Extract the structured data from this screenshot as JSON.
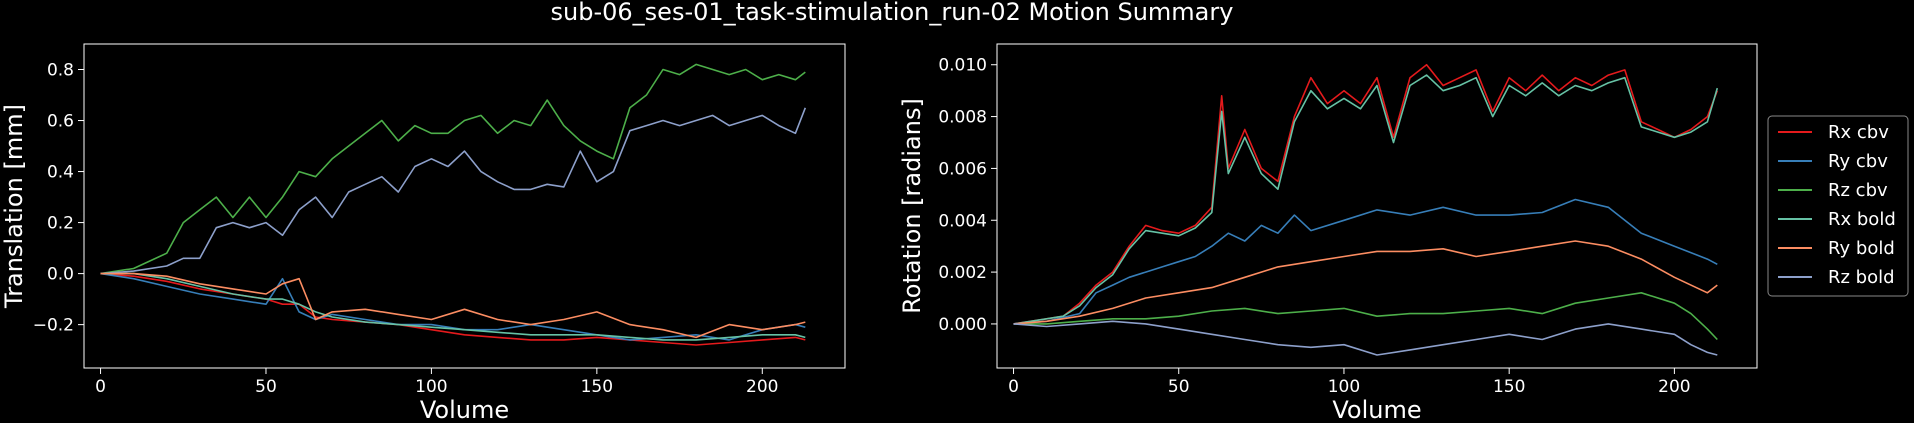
{
  "title": "sub-06_ses-01_task-stimulation_run-02 Motion Summary",
  "colors": {
    "Rx cbv": "#e41a1c",
    "Ry cbv": "#377eb8",
    "Rz cbv": "#4daf4a",
    "Rx bold": "#66c2a5",
    "Ry bold": "#fc8d62",
    "Rz bold": "#8da0cb"
  },
  "chart_data": [
    {
      "type": "line",
      "xlabel": "Volume",
      "ylabel": "Translation [mm]",
      "xlim": [
        -5,
        225
      ],
      "ylim": [
        -0.37,
        0.9
      ],
      "xticks": [
        0,
        50,
        100,
        150,
        200
      ],
      "yticks": [
        -0.2,
        0.0,
        0.2,
        0.4,
        0.6,
        0.8
      ],
      "ytick_labels": [
        "−0.2",
        "0.0",
        "0.2",
        "0.4",
        "0.6",
        "0.8"
      ],
      "grid": false,
      "legend": "none",
      "series": [
        {
          "color_key": "Rz cbv",
          "x": [
            0,
            10,
            20,
            25,
            30,
            35,
            40,
            45,
            50,
            55,
            60,
            65,
            70,
            75,
            80,
            85,
            90,
            95,
            100,
            105,
            110,
            115,
            120,
            125,
            130,
            135,
            140,
            145,
            150,
            155,
            160,
            165,
            170,
            175,
            180,
            185,
            190,
            195,
            200,
            205,
            210,
            213
          ],
          "y": [
            0.0,
            0.02,
            0.08,
            0.2,
            0.25,
            0.3,
            0.22,
            0.3,
            0.22,
            0.3,
            0.4,
            0.38,
            0.45,
            0.5,
            0.55,
            0.6,
            0.52,
            0.58,
            0.55,
            0.55,
            0.6,
            0.62,
            0.55,
            0.6,
            0.58,
            0.68,
            0.58,
            0.52,
            0.48,
            0.45,
            0.65,
            0.7,
            0.8,
            0.78,
            0.82,
            0.8,
            0.78,
            0.8,
            0.76,
            0.78,
            0.76,
            0.79
          ]
        },
        {
          "color_key": "Rz bold",
          "x": [
            0,
            10,
            20,
            25,
            30,
            35,
            40,
            45,
            50,
            55,
            60,
            65,
            70,
            75,
            80,
            85,
            90,
            95,
            100,
            105,
            110,
            115,
            120,
            125,
            130,
            135,
            140,
            145,
            150,
            155,
            160,
            165,
            170,
            175,
            180,
            185,
            190,
            195,
            200,
            205,
            210,
            213
          ],
          "y": [
            0.0,
            0.01,
            0.03,
            0.06,
            0.06,
            0.18,
            0.2,
            0.18,
            0.2,
            0.15,
            0.25,
            0.3,
            0.22,
            0.32,
            0.35,
            0.38,
            0.32,
            0.42,
            0.45,
            0.42,
            0.48,
            0.4,
            0.36,
            0.33,
            0.33,
            0.35,
            0.34,
            0.48,
            0.36,
            0.4,
            0.56,
            0.58,
            0.6,
            0.58,
            0.6,
            0.62,
            0.58,
            0.6,
            0.62,
            0.58,
            0.55,
            0.65
          ]
        },
        {
          "color_key": "Rx cbv",
          "x": [
            0,
            10,
            20,
            30,
            40,
            50,
            55,
            60,
            65,
            70,
            80,
            90,
            100,
            110,
            120,
            130,
            140,
            150,
            160,
            170,
            180,
            190,
            200,
            210,
            213
          ],
          "y": [
            0.0,
            -0.01,
            -0.03,
            -0.06,
            -0.08,
            -0.1,
            -0.12,
            -0.12,
            -0.17,
            -0.18,
            -0.19,
            -0.2,
            -0.22,
            -0.24,
            -0.25,
            -0.26,
            -0.26,
            -0.25,
            -0.26,
            -0.27,
            -0.28,
            -0.27,
            -0.26,
            -0.25,
            -0.26
          ]
        },
        {
          "color_key": "Ry cbv",
          "x": [
            0,
            10,
            20,
            30,
            40,
            50,
            55,
            60,
            65,
            70,
            80,
            90,
            100,
            110,
            120,
            130,
            140,
            150,
            160,
            170,
            180,
            190,
            200,
            210,
            213
          ],
          "y": [
            0.0,
            -0.02,
            -0.05,
            -0.08,
            -0.1,
            -0.12,
            -0.02,
            -0.15,
            -0.18,
            -0.16,
            -0.18,
            -0.2,
            -0.2,
            -0.22,
            -0.22,
            -0.2,
            -0.22,
            -0.24,
            -0.26,
            -0.25,
            -0.24,
            -0.26,
            -0.22,
            -0.2,
            -0.21
          ]
        },
        {
          "color_key": "Rx bold",
          "x": [
            0,
            10,
            20,
            30,
            40,
            50,
            55,
            60,
            65,
            70,
            80,
            90,
            100,
            110,
            120,
            130,
            140,
            150,
            160,
            170,
            180,
            190,
            200,
            210,
            213
          ],
          "y": [
            0.0,
            0.0,
            -0.02,
            -0.05,
            -0.08,
            -0.1,
            -0.1,
            -0.12,
            -0.15,
            -0.17,
            -0.19,
            -0.2,
            -0.21,
            -0.22,
            -0.23,
            -0.24,
            -0.24,
            -0.24,
            -0.25,
            -0.26,
            -0.26,
            -0.25,
            -0.24,
            -0.24,
            -0.25
          ]
        },
        {
          "color_key": "Ry bold",
          "x": [
            0,
            10,
            20,
            30,
            40,
            50,
            55,
            60,
            65,
            70,
            80,
            90,
            100,
            110,
            120,
            130,
            140,
            150,
            160,
            170,
            180,
            190,
            200,
            210,
            213
          ],
          "y": [
            0.0,
            0.0,
            -0.01,
            -0.04,
            -0.06,
            -0.08,
            -0.04,
            -0.02,
            -0.18,
            -0.15,
            -0.14,
            -0.16,
            -0.18,
            -0.14,
            -0.18,
            -0.2,
            -0.18,
            -0.15,
            -0.2,
            -0.22,
            -0.25,
            -0.2,
            -0.22,
            -0.2,
            -0.19
          ]
        }
      ]
    },
    {
      "type": "line",
      "xlabel": "Volume",
      "ylabel": "Rotation [radians]",
      "xlim": [
        -5,
        225
      ],
      "ylim": [
        -0.0017,
        0.0108
      ],
      "xticks": [
        0,
        50,
        100,
        150,
        200
      ],
      "yticks": [
        0.0,
        0.002,
        0.004,
        0.006,
        0.008,
        0.01
      ],
      "ytick_labels": [
        "0.000",
        "0.002",
        "0.004",
        "0.006",
        "0.008",
        "0.010"
      ],
      "grid": false,
      "legend": "right, outside",
      "legend_entries": [
        "Rx cbv",
        "Ry cbv",
        "Rz cbv",
        "Rx bold",
        "Ry bold",
        "Rz bold"
      ],
      "series": [
        {
          "name": "Rx cbv",
          "x": [
            0,
            10,
            15,
            20,
            25,
            30,
            35,
            40,
            45,
            50,
            55,
            60,
            63,
            65,
            70,
            75,
            80,
            85,
            90,
            95,
            100,
            105,
            110,
            115,
            120,
            125,
            130,
            135,
            140,
            145,
            150,
            155,
            160,
            165,
            170,
            175,
            180,
            185,
            190,
            195,
            200,
            205,
            210,
            213
          ],
          "y": [
            0.0,
            0.0002,
            0.0003,
            0.0008,
            0.0015,
            0.002,
            0.003,
            0.0038,
            0.0036,
            0.0035,
            0.0038,
            0.0045,
            0.0088,
            0.006,
            0.0075,
            0.006,
            0.0055,
            0.008,
            0.0095,
            0.0085,
            0.009,
            0.0085,
            0.0095,
            0.0072,
            0.0095,
            0.01,
            0.0092,
            0.0095,
            0.0098,
            0.0082,
            0.0095,
            0.009,
            0.0096,
            0.009,
            0.0095,
            0.0092,
            0.0096,
            0.0098,
            0.0078,
            0.0075,
            0.0072,
            0.0075,
            0.008,
            0.009
          ]
        },
        {
          "name": "Ry cbv",
          "x": [
            0,
            10,
            20,
            25,
            30,
            35,
            40,
            45,
            50,
            55,
            60,
            65,
            70,
            75,
            80,
            85,
            90,
            100,
            110,
            120,
            130,
            140,
            150,
            160,
            170,
            180,
            190,
            200,
            210,
            213
          ],
          "y": [
            0.0,
            0.0001,
            0.0004,
            0.0012,
            0.0015,
            0.0018,
            0.002,
            0.0022,
            0.0024,
            0.0026,
            0.003,
            0.0035,
            0.0032,
            0.0038,
            0.0035,
            0.0042,
            0.0036,
            0.004,
            0.0044,
            0.0042,
            0.0045,
            0.0042,
            0.0042,
            0.0043,
            0.0048,
            0.0045,
            0.0035,
            0.003,
            0.0025,
            0.0023
          ]
        },
        {
          "name": "Rz cbv",
          "x": [
            0,
            10,
            20,
            30,
            40,
            50,
            60,
            70,
            80,
            90,
            100,
            110,
            120,
            130,
            140,
            150,
            160,
            170,
            180,
            190,
            200,
            205,
            210,
            213
          ],
          "y": [
            0.0,
            0.0,
            0.0001,
            0.0002,
            0.0002,
            0.0003,
            0.0005,
            0.0006,
            0.0004,
            0.0005,
            0.0006,
            0.0003,
            0.0004,
            0.0004,
            0.0005,
            0.0006,
            0.0004,
            0.0008,
            0.001,
            0.0012,
            0.0008,
            0.0004,
            -0.0002,
            -0.0006
          ]
        },
        {
          "name": "Rx bold",
          "x": [
            0,
            10,
            15,
            20,
            25,
            30,
            35,
            40,
            45,
            50,
            55,
            60,
            63,
            65,
            70,
            75,
            80,
            85,
            90,
            95,
            100,
            105,
            110,
            115,
            120,
            125,
            130,
            135,
            140,
            145,
            150,
            155,
            160,
            165,
            170,
            175,
            180,
            185,
            190,
            195,
            200,
            205,
            210,
            213
          ],
          "y": [
            0.0,
            0.0002,
            0.0003,
            0.0007,
            0.0014,
            0.0019,
            0.0029,
            0.0036,
            0.0035,
            0.0034,
            0.0037,
            0.0043,
            0.0082,
            0.0058,
            0.0072,
            0.0058,
            0.0052,
            0.0078,
            0.009,
            0.0083,
            0.0087,
            0.0083,
            0.0092,
            0.007,
            0.0092,
            0.0096,
            0.009,
            0.0092,
            0.0095,
            0.008,
            0.0092,
            0.0088,
            0.0093,
            0.0088,
            0.0092,
            0.009,
            0.0093,
            0.0095,
            0.0076,
            0.0074,
            0.0072,
            0.0074,
            0.0078,
            0.0091
          ]
        },
        {
          "name": "Ry bold",
          "x": [
            0,
            10,
            20,
            30,
            40,
            50,
            60,
            70,
            80,
            90,
            100,
            110,
            120,
            130,
            140,
            150,
            160,
            170,
            180,
            190,
            200,
            210,
            213
          ],
          "y": [
            0.0,
            0.0001,
            0.0003,
            0.0006,
            0.001,
            0.0012,
            0.0014,
            0.0018,
            0.0022,
            0.0024,
            0.0026,
            0.0028,
            0.0028,
            0.0029,
            0.0026,
            0.0028,
            0.003,
            0.0032,
            0.003,
            0.0025,
            0.0018,
            0.0012,
            0.0015
          ]
        },
        {
          "name": "Rz bold",
          "x": [
            0,
            10,
            20,
            30,
            40,
            50,
            60,
            70,
            80,
            90,
            100,
            110,
            120,
            130,
            140,
            150,
            160,
            170,
            180,
            190,
            200,
            205,
            210,
            213
          ],
          "y": [
            0.0,
            -0.0001,
            0.0,
            0.0001,
            0.0,
            -0.0002,
            -0.0004,
            -0.0006,
            -0.0008,
            -0.0009,
            -0.0008,
            -0.0012,
            -0.001,
            -0.0008,
            -0.0006,
            -0.0004,
            -0.0006,
            -0.0002,
            0.0,
            -0.0002,
            -0.0004,
            -0.0008,
            -0.0011,
            -0.0012
          ]
        }
      ]
    }
  ]
}
